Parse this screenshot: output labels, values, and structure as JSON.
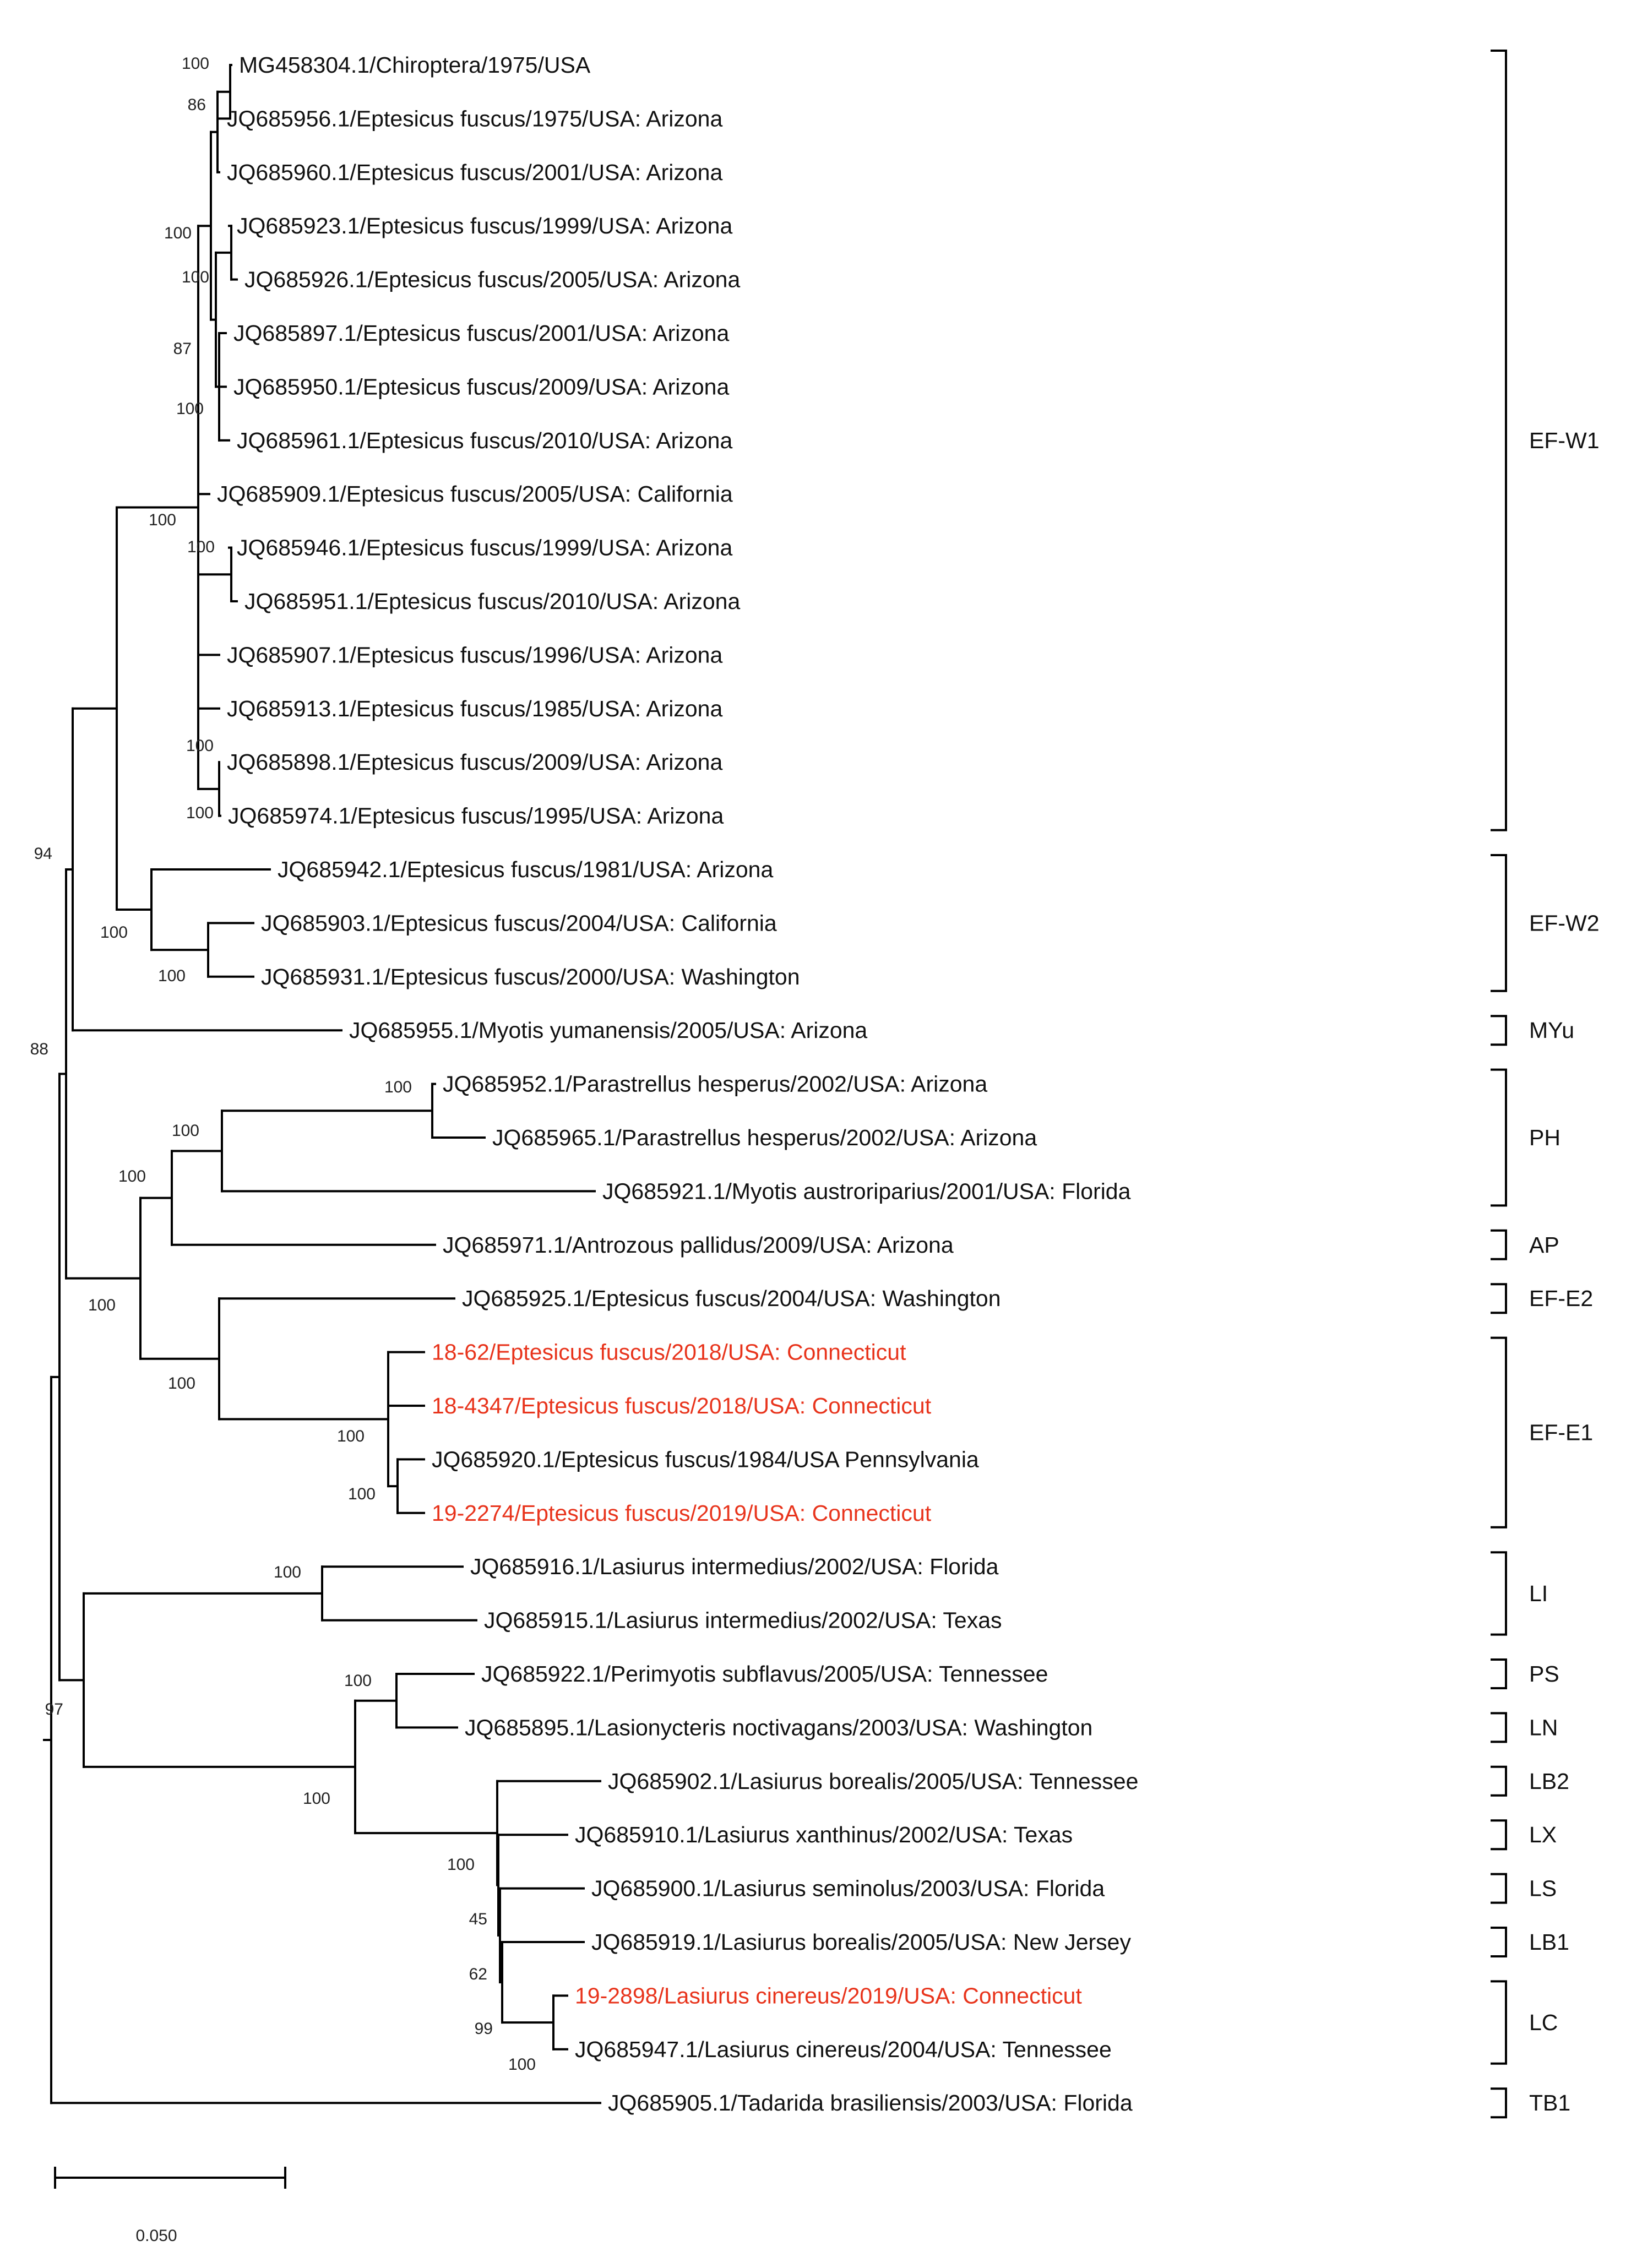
{
  "colors": {
    "highlight": "#e8341c",
    "default": "#111111"
  },
  "leaves": [
    {
      "id": "MG458304",
      "label": "MG458304.1/Chiroptera/1975/USA",
      "highlight": false
    },
    {
      "id": "JQ685956",
      "label": "JQ685956.1/Eptesicus fuscus/1975/USA: Arizona",
      "highlight": false
    },
    {
      "id": "JQ685960",
      "label": "JQ685960.1/Eptesicus fuscus/2001/USA: Arizona",
      "highlight": false
    },
    {
      "id": "JQ685923",
      "label": "JQ685923.1/Eptesicus fuscus/1999/USA: Arizona",
      "highlight": false
    },
    {
      "id": "JQ685926",
      "label": "JQ685926.1/Eptesicus fuscus/2005/USA: Arizona",
      "highlight": false
    },
    {
      "id": "JQ685897",
      "label": "JQ685897.1/Eptesicus fuscus/2001/USA: Arizona",
      "highlight": false
    },
    {
      "id": "JQ685950",
      "label": "JQ685950.1/Eptesicus fuscus/2009/USA: Arizona",
      "highlight": false
    },
    {
      "id": "JQ685961",
      "label": "JQ685961.1/Eptesicus fuscus/2010/USA: Arizona",
      "highlight": false
    },
    {
      "id": "JQ685909",
      "label": "JQ685909.1/Eptesicus fuscus/2005/USA: California",
      "highlight": false
    },
    {
      "id": "JQ685946",
      "label": "JQ685946.1/Eptesicus fuscus/1999/USA: Arizona",
      "highlight": false
    },
    {
      "id": "JQ685951",
      "label": "JQ685951.1/Eptesicus fuscus/2010/USA: Arizona",
      "highlight": false
    },
    {
      "id": "JQ685907",
      "label": "JQ685907.1/Eptesicus fuscus/1996/USA: Arizona",
      "highlight": false
    },
    {
      "id": "JQ685913",
      "label": "JQ685913.1/Eptesicus fuscus/1985/USA: Arizona",
      "highlight": false
    },
    {
      "id": "JQ685898",
      "label": "JQ685898.1/Eptesicus fuscus/2009/USA: Arizona",
      "highlight": false
    },
    {
      "id": "JQ685974",
      "label": "JQ685974.1/Eptesicus fuscus/1995/USA: Arizona",
      "highlight": false
    },
    {
      "id": "JQ685942",
      "label": "JQ685942.1/Eptesicus fuscus/1981/USA: Arizona",
      "highlight": false
    },
    {
      "id": "JQ685903",
      "label": "JQ685903.1/Eptesicus fuscus/2004/USA: California",
      "highlight": false
    },
    {
      "id": "JQ685931",
      "label": "JQ685931.1/Eptesicus fuscus/2000/USA: Washington",
      "highlight": false
    },
    {
      "id": "JQ685955",
      "label": "JQ685955.1/Myotis yumanensis/2005/USA: Arizona",
      "highlight": false
    },
    {
      "id": "JQ685952",
      "label": "JQ685952.1/Parastrellus hesperus/2002/USA: Arizona",
      "highlight": false
    },
    {
      "id": "JQ685965",
      "label": "JQ685965.1/Parastrellus hesperus/2002/USA: Arizona",
      "highlight": false
    },
    {
      "id": "JQ685921",
      "label": "JQ685921.1/Myotis austroriparius/2001/USA: Florida",
      "highlight": false
    },
    {
      "id": "JQ685971",
      "label": "JQ685971.1/Antrozous pallidus/2009/USA: Arizona",
      "highlight": false
    },
    {
      "id": "JQ685925",
      "label": "JQ685925.1/Eptesicus fuscus/2004/USA: Washington",
      "highlight": false
    },
    {
      "id": "18-62",
      "label": "18-62/Eptesicus fuscus/2018/USA: Connecticut",
      "highlight": true
    },
    {
      "id": "18-4347",
      "label": "18-4347/Eptesicus fuscus/2018/USA: Connecticut",
      "highlight": true
    },
    {
      "id": "JQ685920",
      "label": "JQ685920.1/Eptesicus fuscus/1984/USA Pennsylvania",
      "highlight": false
    },
    {
      "id": "19-2274",
      "label": "19-2274/Eptesicus fuscus/2019/USA: Connecticut",
      "highlight": true
    },
    {
      "id": "JQ685916",
      "label": "JQ685916.1/Lasiurus intermedius/2002/USA: Florida",
      "highlight": false
    },
    {
      "id": "JQ685915",
      "label": "JQ685915.1/Lasiurus intermedius/2002/USA: Texas",
      "highlight": false
    },
    {
      "id": "JQ685922",
      "label": "JQ685922.1/Perimyotis subflavus/2005/USA: Tennessee",
      "highlight": false
    },
    {
      "id": "JQ685895",
      "label": "JQ685895.1/Lasionycteris noctivagans/2003/USA: Washington",
      "highlight": false
    },
    {
      "id": "JQ685902",
      "label": "JQ685902.1/Lasiurus borealis/2005/USA: Tennessee",
      "highlight": false
    },
    {
      "id": "JQ685910",
      "label": "JQ685910.1/Lasiurus xanthinus/2002/USA: Texas",
      "highlight": false
    },
    {
      "id": "JQ685900",
      "label": "JQ685900.1/Lasiurus seminolus/2003/USA: Florida",
      "highlight": false
    },
    {
      "id": "JQ685919",
      "label": "JQ685919.1/Lasiurus borealis/2005/USA: New Jersey",
      "highlight": false
    },
    {
      "id": "19-2898",
      "label": "19-2898/Lasiurus cinereus/2019/USA: Connecticut",
      "highlight": true
    },
    {
      "id": "JQ685947",
      "label": "JQ685947.1/Lasiurus cinereus/2004/USA: Tennessee",
      "highlight": false
    },
    {
      "id": "JQ685905",
      "label": "JQ685905.1/Tadarida brasiliensis/2003/USA: Florida",
      "highlight": false
    }
  ],
  "support_values": [
    "100",
    "86",
    "100",
    "100",
    "87",
    "100",
    "100",
    "100",
    "100",
    "100",
    "94",
    "100",
    "100",
    "88",
    "100",
    "100",
    "100",
    "100",
    "100",
    "100",
    "100",
    "100",
    "100",
    "97",
    "100",
    "100",
    "45",
    "62",
    "99",
    "100"
  ],
  "clades": [
    {
      "label": "EF-W1",
      "first_leaf": 0,
      "last_leaf": 14
    },
    {
      "label": "EF-W2",
      "first_leaf": 15,
      "last_leaf": 17
    },
    {
      "label": "MYu",
      "first_leaf": 18,
      "last_leaf": 18
    },
    {
      "label": "PH",
      "first_leaf": 19,
      "last_leaf": 21
    },
    {
      "label": "AP",
      "first_leaf": 22,
      "last_leaf": 22
    },
    {
      "label": "EF-E2",
      "first_leaf": 23,
      "last_leaf": 23
    },
    {
      "label": "EF-E1",
      "first_leaf": 24,
      "last_leaf": 27
    },
    {
      "label": "LI",
      "first_leaf": 28,
      "last_leaf": 29
    },
    {
      "label": "PS",
      "first_leaf": 30,
      "last_leaf": 30
    },
    {
      "label": "LN",
      "first_leaf": 31,
      "last_leaf": 31
    },
    {
      "label": "LB2",
      "first_leaf": 32,
      "last_leaf": 32
    },
    {
      "label": "LX",
      "first_leaf": 33,
      "last_leaf": 33
    },
    {
      "label": "LS",
      "first_leaf": 34,
      "last_leaf": 34
    },
    {
      "label": "LB1",
      "first_leaf": 35,
      "last_leaf": 35
    },
    {
      "label": "LC",
      "first_leaf": 36,
      "last_leaf": 37
    },
    {
      "label": "TB1",
      "first_leaf": 38,
      "last_leaf": 38
    }
  ],
  "scale_bar": {
    "value": 0.05,
    "label": "0.050"
  }
}
